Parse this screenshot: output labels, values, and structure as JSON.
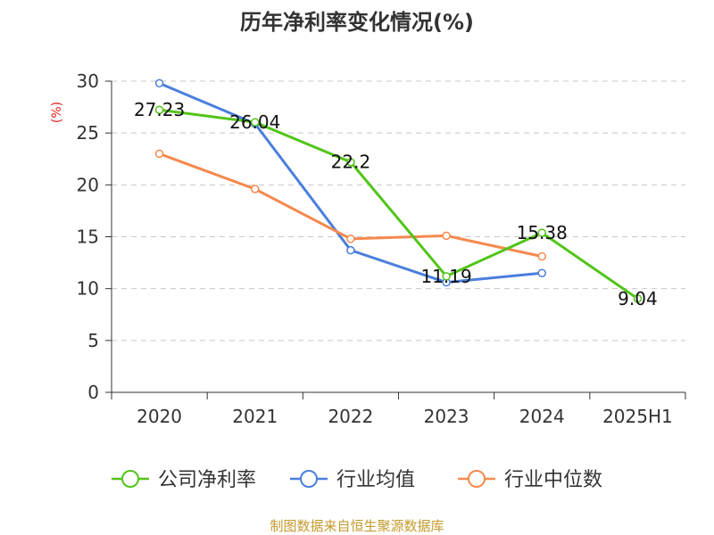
{
  "chart_data": {
    "type": "line",
    "title": "历年净利率变化情况(%)",
    "ylabel": "(%)",
    "xlabel": "",
    "categories": [
      "2020",
      "2021",
      "2022",
      "2023",
      "2024",
      "2025H1"
    ],
    "ylim": [
      0,
      30
    ],
    "yticks": [
      0,
      5,
      10,
      15,
      20,
      25,
      30
    ],
    "grid": true,
    "legend_position": "bottom",
    "series": [
      {
        "name": "公司净利率",
        "color": "#52c41a",
        "values": [
          27.23,
          26.04,
          22.2,
          11.19,
          15.38,
          9.04
        ],
        "labels": [
          "27.23",
          "26.04",
          "22.2",
          "11.19",
          "15.38",
          "9.04"
        ]
      },
      {
        "name": "行业均值",
        "color": "#4a7fdc",
        "values": [
          29.8,
          25.9,
          13.7,
          10.6,
          11.5,
          null
        ]
      },
      {
        "name": "行业中位数",
        "color": "#f5894e",
        "values": [
          23.0,
          19.6,
          14.8,
          15.1,
          13.1,
          null
        ]
      }
    ],
    "source": "制图数据来自恒生聚源数据库"
  }
}
